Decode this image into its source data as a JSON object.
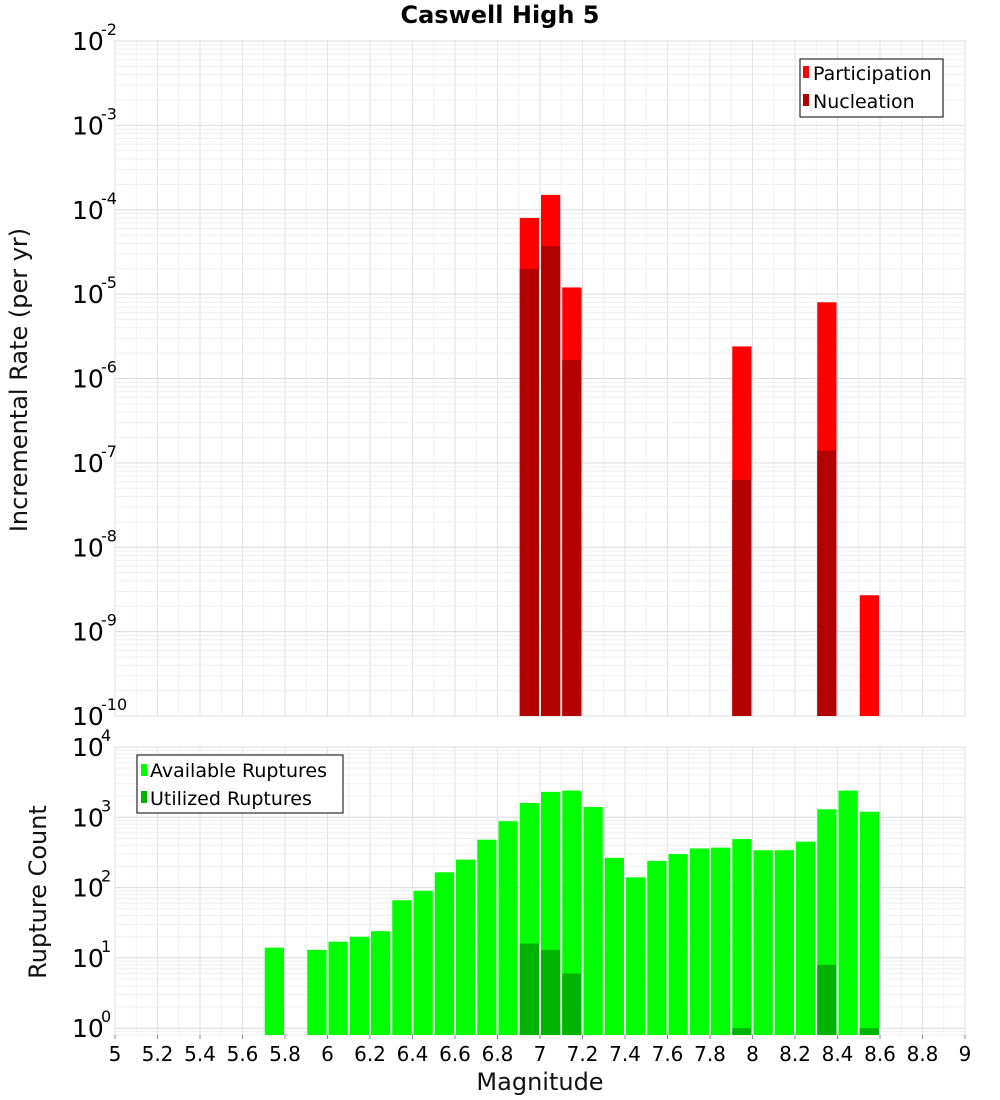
{
  "chart_data": [
    {
      "type": "bar",
      "title": "Caswell High 5",
      "xlabel": "",
      "ylabel": "Incremental Rate (per yr)",
      "yscale": "log",
      "ylim": [
        1e-10,
        0.01
      ],
      "xlim": [
        5,
        9
      ],
      "bin_width": 0.1,
      "y_ticks": [
        {
          "base": "10",
          "exp": "-2",
          "value": 0.01
        },
        {
          "base": "10",
          "exp": "-3",
          "value": 0.001
        },
        {
          "base": "10",
          "exp": "-4",
          "value": 0.0001
        },
        {
          "base": "10",
          "exp": "-5",
          "value": 1e-05
        },
        {
          "base": "10",
          "exp": "-6",
          "value": 1e-06
        },
        {
          "base": "10",
          "exp": "-7",
          "value": 1e-07
        },
        {
          "base": "10",
          "exp": "-8",
          "value": 1e-08
        },
        {
          "base": "10",
          "exp": "-9",
          "value": 1e-09
        },
        {
          "base": "10",
          "exp": "-10",
          "value": 1e-10
        }
      ],
      "legend": {
        "position": "top-right",
        "entries": [
          {
            "label": "Participation",
            "color": "#ff0000"
          },
          {
            "label": "Nucleation",
            "color": "#b30000"
          }
        ]
      },
      "series": [
        {
          "name": "Participation",
          "color": "#ff0000",
          "x": [
            6.95,
            7.05,
            7.15,
            7.95,
            8.35,
            8.55
          ],
          "values": [
            8e-05,
            0.00015,
            1.2e-05,
            2.4e-06,
            8e-06,
            2.7e-09
          ]
        },
        {
          "name": "Nucleation",
          "color": "#b30000",
          "x": [
            6.95,
            7.05,
            7.15,
            7.95,
            8.35
          ],
          "values": [
            2e-05,
            3.7e-05,
            1.65e-06,
            6.3e-08,
            1.4e-07
          ]
        }
      ]
    },
    {
      "type": "bar",
      "title": "",
      "xlabel": "Magnitude",
      "ylabel": "Rupture Count",
      "yscale": "log",
      "ylim": [
        0.8,
        10000
      ],
      "xlim": [
        5,
        9
      ],
      "bin_width": 0.1,
      "x_ticks": [
        "5",
        "5.2",
        "5.4",
        "5.6",
        "5.8",
        "6",
        "6.2",
        "6.4",
        "6.6",
        "6.8",
        "7",
        "7.2",
        "7.4",
        "7.6",
        "7.8",
        "8",
        "8.2",
        "8.4",
        "8.6",
        "8.8",
        "9"
      ],
      "y_ticks": [
        {
          "base": "10",
          "exp": "4",
          "value": 10000
        },
        {
          "base": "10",
          "exp": "3",
          "value": 1000
        },
        {
          "base": "10",
          "exp": "2",
          "value": 100
        },
        {
          "base": "10",
          "exp": "1",
          "value": 10
        },
        {
          "base": "10",
          "exp": "0",
          "value": 1
        }
      ],
      "legend": {
        "position": "top-left",
        "entries": [
          {
            "label": "Available Ruptures",
            "color": "#00ff00"
          },
          {
            "label": "Utilized Ruptures",
            "color": "#00b300"
          }
        ]
      },
      "series": [
        {
          "name": "Available Ruptures",
          "color": "#00ff00",
          "x": [
            5.75,
            5.95,
            6.05,
            6.15,
            6.25,
            6.35,
            6.45,
            6.55,
            6.65,
            6.75,
            6.85,
            6.95,
            7.05,
            7.15,
            7.25,
            7.35,
            7.45,
            7.55,
            7.65,
            7.75,
            7.85,
            7.95,
            8.05,
            8.15,
            8.25,
            8.35,
            8.45,
            8.55
          ],
          "values": [
            14,
            13,
            17,
            20,
            24,
            66,
            90,
            165,
            250,
            480,
            880,
            1600,
            2300,
            2400,
            1400,
            265,
            140,
            240,
            300,
            360,
            370,
            490,
            340,
            340,
            450,
            1300,
            2400,
            1200
          ]
        },
        {
          "name": "Utilized Ruptures",
          "color": "#00b300",
          "x": [
            6.95,
            7.05,
            7.15,
            7.95,
            8.35,
            8.55
          ],
          "values": [
            16,
            13,
            6,
            1,
            8,
            1
          ]
        }
      ]
    }
  ]
}
